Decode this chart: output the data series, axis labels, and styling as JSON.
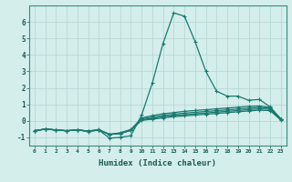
{
  "title": "",
  "xlabel": "Humidex (Indice chaleur)",
  "ylabel": "",
  "background_color": "#d4eeec",
  "grid_color": "#b0d5d2",
  "line_color": "#1a7a70",
  "x_values": [
    0,
    1,
    2,
    3,
    4,
    5,
    6,
    7,
    8,
    9,
    10,
    11,
    12,
    13,
    14,
    15,
    16,
    17,
    18,
    19,
    20,
    21,
    22,
    23
  ],
  "series": [
    [
      -0.6,
      -0.5,
      -0.55,
      -0.6,
      -0.55,
      -0.65,
      -0.55,
      -1.05,
      -1.0,
      -0.9,
      0.35,
      2.3,
      4.7,
      6.55,
      6.35,
      4.8,
      3.0,
      1.8,
      1.5,
      1.5,
      1.25,
      1.3,
      0.85,
      0.12
    ],
    [
      -0.6,
      -0.5,
      -0.55,
      -0.6,
      -0.55,
      -0.62,
      -0.52,
      -0.82,
      -0.72,
      -0.52,
      0.18,
      0.32,
      0.43,
      0.5,
      0.58,
      0.63,
      0.68,
      0.73,
      0.78,
      0.83,
      0.88,
      0.9,
      0.82,
      0.12
    ],
    [
      -0.6,
      -0.5,
      -0.55,
      -0.6,
      -0.55,
      -0.62,
      -0.55,
      -0.82,
      -0.77,
      -0.57,
      0.12,
      0.23,
      0.33,
      0.4,
      0.47,
      0.52,
      0.57,
      0.62,
      0.67,
      0.72,
      0.77,
      0.82,
      0.77,
      0.12
    ],
    [
      -0.6,
      -0.5,
      -0.55,
      -0.6,
      -0.55,
      -0.62,
      -0.57,
      -0.82,
      -0.77,
      -0.57,
      0.08,
      0.15,
      0.25,
      0.32,
      0.38,
      0.43,
      0.48,
      0.53,
      0.58,
      0.63,
      0.68,
      0.73,
      0.7,
      0.08
    ],
    [
      -0.6,
      -0.5,
      -0.55,
      -0.6,
      -0.55,
      -0.62,
      -0.57,
      -0.82,
      -0.77,
      -0.57,
      0.03,
      0.1,
      0.18,
      0.25,
      0.3,
      0.35,
      0.4,
      0.45,
      0.5,
      0.55,
      0.6,
      0.65,
      0.62,
      0.05
    ]
  ],
  "xlim": [
    -0.5,
    23.5
  ],
  "ylim": [
    -1.5,
    7.0
  ],
  "yticks": [
    -1,
    0,
    1,
    2,
    3,
    4,
    5,
    6
  ],
  "xtick_labels": [
    "0",
    "1",
    "2",
    "3",
    "4",
    "5",
    "6",
    "7",
    "8",
    "9",
    "10",
    "11",
    "12",
    "13",
    "14",
    "15",
    "16",
    "17",
    "18",
    "19",
    "20",
    "21",
    "22",
    "23"
  ]
}
